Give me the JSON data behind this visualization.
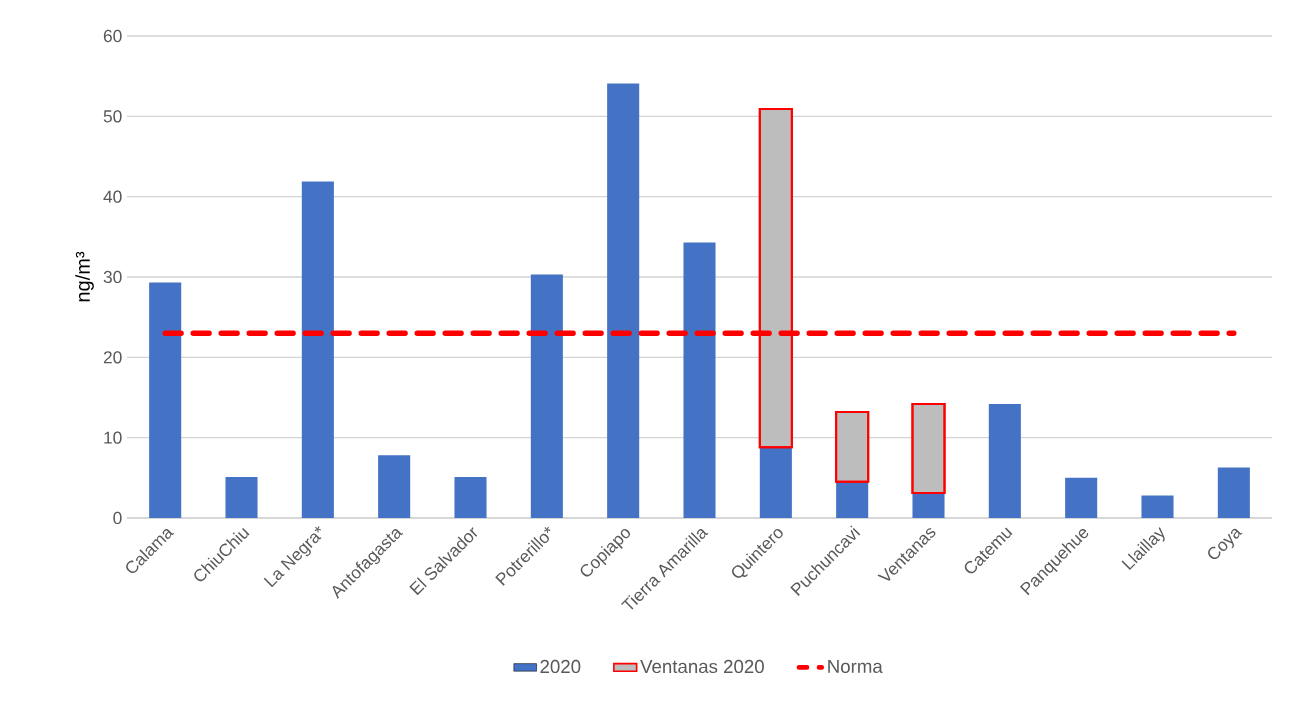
{
  "chart_data": {
    "type": "bar",
    "ylabel": "ng/m³",
    "categories": [
      "Calama",
      "ChiuChiu",
      "La Negra*",
      "Antofagasta",
      "El Salvador",
      "Potrerillo*",
      "Copiapo",
      "Tierra Amarilla",
      "Quintero",
      "Puchuncavi",
      "Ventanas",
      "Catemu",
      "Panquehue",
      "Llaillay",
      "Coya"
    ],
    "series": [
      {
        "name": "2020",
        "color": "#4472c4",
        "values": [
          29.3,
          5.1,
          41.9,
          7.8,
          5.1,
          30.3,
          54.1,
          34.3,
          8.8,
          4.5,
          3.1,
          14.2,
          5.0,
          2.8,
          6.3
        ]
      },
      {
        "name": "Ventanas 2020",
        "color": "#bdbdbd",
        "values": [
          null,
          null,
          null,
          null,
          null,
          null,
          null,
          null,
          42.1,
          8.7,
          11.1,
          null,
          null,
          null,
          null
        ]
      }
    ],
    "stacked": true,
    "ylim": [
      0,
      60
    ],
    "yticks": [
      0,
      10,
      20,
      30,
      40,
      50,
      60
    ],
    "ref_lines": [
      {
        "axis": "y",
        "value": 23,
        "label": "Norma",
        "color": "#ff0000",
        "line_style": "dashed"
      }
    ],
    "grid": "y",
    "legend": "bottom"
  }
}
